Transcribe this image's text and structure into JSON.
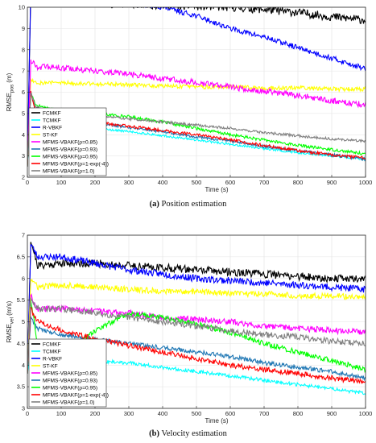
{
  "captions": [
    {
      "label": "(a)",
      "text": "Position estimation"
    },
    {
      "label": "(b)",
      "text": "Velocity estimation"
    }
  ],
  "chart_data": [
    {
      "type": "line",
      "title": "",
      "xlabel": "Time (s)",
      "ylabel_main": "RMSE",
      "ylabel_sub": "pos",
      "ylabel_unit": "(m)",
      "xlim": [
        0,
        1000
      ],
      "ylim": [
        2,
        10
      ],
      "xticks": [
        0,
        100,
        200,
        300,
        400,
        500,
        600,
        700,
        800,
        900,
        1000
      ],
      "xtick_labels": [
        "0",
        "100",
        "200",
        "300",
        "400",
        "500",
        "600",
        "700",
        "800",
        "900",
        "1000"
      ],
      "yticks": [
        2,
        3,
        4,
        5,
        6,
        7,
        8,
        9,
        10
      ],
      "ytick_labels": [
        "2",
        "3",
        "4",
        "5",
        "6",
        "7",
        "8",
        "9",
        "10"
      ],
      "grid": true,
      "legend_position": "bottom-left",
      "series": [
        {
          "name": "FCMKF",
          "color": "#000000",
          "noise": 0.2,
          "seed": 11,
          "x": [
            0,
            10,
            30,
            60,
            100,
            200,
            300,
            400,
            500,
            600,
            700,
            800,
            900,
            1000
          ],
          "y": [
            2.5,
            10.8,
            10.6,
            10.4,
            10.3,
            10.2,
            10.15,
            10.1,
            10.05,
            10.0,
            9.9,
            9.75,
            9.55,
            9.4
          ]
        },
        {
          "name": "TCMKF",
          "color": "#00ffff",
          "noise": 0.05,
          "seed": 12,
          "x": [
            0,
            10,
            20,
            40,
            100,
            200,
            300,
            400,
            500,
            600,
            700,
            800,
            900,
            1000
          ],
          "y": [
            2.5,
            5.2,
            4.7,
            4.55,
            4.45,
            4.3,
            4.15,
            3.95,
            3.75,
            3.55,
            3.35,
            3.15,
            3.0,
            2.85
          ]
        },
        {
          "name": "R-VBKF",
          "color": "#0000ff",
          "noise": 0.12,
          "seed": 13,
          "x": [
            0,
            10,
            30,
            100,
            200,
            300,
            400,
            500,
            600,
            700,
            800,
            900,
            1000
          ],
          "y": [
            2.5,
            11.0,
            10.6,
            10.5,
            10.35,
            10.2,
            10.0,
            9.6,
            9.0,
            8.6,
            8.1,
            7.6,
            7.1
          ]
        },
        {
          "name": "ST-KF",
          "color": "#ffff00",
          "noise": 0.1,
          "seed": 14,
          "x": [
            0,
            10,
            30,
            100,
            200,
            300,
            400,
            500,
            600,
            700,
            800,
            900,
            1000
          ],
          "y": [
            2.5,
            6.6,
            6.45,
            6.45,
            6.4,
            6.35,
            6.3,
            6.25,
            6.25,
            6.2,
            6.2,
            6.15,
            6.15
          ]
        },
        {
          "name": "MFMS-VBAKF(ρ=0.85)",
          "color": "#ff00ff",
          "noise": 0.14,
          "seed": 15,
          "x": [
            0,
            10,
            30,
            100,
            200,
            300,
            400,
            500,
            600,
            700,
            800,
            900,
            1000
          ],
          "y": [
            2.5,
            7.5,
            7.2,
            7.15,
            7.0,
            6.85,
            6.65,
            6.45,
            6.25,
            6.05,
            5.85,
            5.6,
            5.4
          ]
        },
        {
          "name": "MFMS-VBAKF(ρ=0.93)",
          "color": "#1f77b4",
          "noise": 0.07,
          "seed": 16,
          "x": [
            0,
            10,
            25,
            60,
            100,
            200,
            300,
            400,
            500,
            600,
            700,
            800,
            900,
            1000
          ],
          "y": [
            2.5,
            6.0,
            5.1,
            4.85,
            4.75,
            4.55,
            4.35,
            4.15,
            3.9,
            3.7,
            3.45,
            3.25,
            3.05,
            2.85
          ]
        },
        {
          "name": "MFMS-VBAKF(ρ=0.95)",
          "color": "#00ff00",
          "noise": 0.07,
          "seed": 17,
          "x": [
            0,
            10,
            25,
            60,
            100,
            200,
            300,
            400,
            500,
            600,
            700,
            800,
            900,
            1000
          ],
          "y": [
            2.5,
            6.0,
            5.4,
            5.25,
            5.15,
            5.0,
            4.85,
            4.6,
            4.3,
            4.0,
            3.75,
            3.5,
            3.3,
            3.1
          ]
        },
        {
          "name": "MFMS-VBAKF(ρ=1-exp(-4))",
          "color": "#ff0000",
          "noise": 0.07,
          "seed": 18,
          "x": [
            0,
            10,
            25,
            60,
            100,
            200,
            300,
            400,
            500,
            600,
            700,
            800,
            900,
            1000
          ],
          "y": [
            2.5,
            6.0,
            5.1,
            4.95,
            4.85,
            4.6,
            4.4,
            4.2,
            4.0,
            3.75,
            3.5,
            3.25,
            3.05,
            2.9
          ]
        },
        {
          "name": "MFMS-VBAKF(ρ=1.0)",
          "color": "#808080",
          "noise": 0.06,
          "seed": 19,
          "x": [
            0,
            10,
            25,
            60,
            100,
            200,
            300,
            400,
            500,
            600,
            700,
            800,
            900,
            1000
          ],
          "y": [
            2.5,
            6.0,
            5.3,
            5.15,
            5.05,
            4.9,
            4.75,
            4.6,
            4.45,
            4.3,
            4.1,
            3.95,
            3.8,
            3.7
          ]
        }
      ]
    },
    {
      "type": "line",
      "title": "",
      "xlabel": "Time (s)",
      "ylabel_main": "RMSE",
      "ylabel_sub": "vel",
      "ylabel_unit": "(m/s)",
      "xlim": [
        0,
        1000
      ],
      "ylim": [
        3,
        7
      ],
      "xticks": [
        0,
        100,
        200,
        300,
        400,
        500,
        600,
        700,
        800,
        900,
        1000
      ],
      "xtick_labels": [
        "0",
        "100",
        "200",
        "300",
        "400",
        "500",
        "600",
        "700",
        "800",
        "900",
        "1000"
      ],
      "yticks": [
        3,
        3.5,
        4,
        4.5,
        5,
        5.5,
        6,
        6.5,
        7
      ],
      "ytick_labels": [
        "3",
        "3.5",
        "4",
        "4.5",
        "5",
        "5.5",
        "6",
        "6.5",
        "7"
      ],
      "grid": true,
      "legend_position": "bottom-left",
      "series": [
        {
          "name": "FCMKF",
          "color": "#000000",
          "noise": 0.09,
          "seed": 21,
          "x": [
            0,
            10,
            30,
            100,
            200,
            300,
            400,
            500,
            600,
            700,
            800,
            900,
            1000
          ],
          "y": [
            3.8,
            6.9,
            6.3,
            6.35,
            6.35,
            6.3,
            6.25,
            6.2,
            6.15,
            6.1,
            6.05,
            6.0,
            6.0
          ]
        },
        {
          "name": "TCMKF",
          "color": "#00ffff",
          "noise": 0.04,
          "seed": 22,
          "x": [
            0,
            10,
            30,
            100,
            200,
            300,
            400,
            500,
            600,
            700,
            800,
            900,
            1000
          ],
          "y": [
            3.8,
            4.3,
            4.2,
            4.15,
            4.1,
            4.05,
            3.95,
            3.85,
            3.75,
            3.65,
            3.55,
            3.45,
            3.35
          ]
        },
        {
          "name": "R-VBKF",
          "color": "#0000ff",
          "noise": 0.08,
          "seed": 23,
          "x": [
            0,
            10,
            30,
            100,
            200,
            300,
            400,
            500,
            600,
            700,
            800,
            900,
            1000
          ],
          "y": [
            3.8,
            6.8,
            6.5,
            6.5,
            6.35,
            6.2,
            6.1,
            6.0,
            5.95,
            5.9,
            5.85,
            5.8,
            5.75
          ]
        },
        {
          "name": "ST-KF",
          "color": "#ffff00",
          "noise": 0.07,
          "seed": 24,
          "x": [
            0,
            10,
            30,
            100,
            200,
            300,
            400,
            500,
            600,
            700,
            800,
            900,
            1000
          ],
          "y": [
            3.8,
            6.0,
            5.8,
            5.85,
            5.8,
            5.75,
            5.7,
            5.7,
            5.65,
            5.65,
            5.6,
            5.6,
            5.55
          ]
        },
        {
          "name": "MFMS-VBAKF(ρ=0.85)",
          "color": "#ff00ff",
          "noise": 0.07,
          "seed": 25,
          "x": [
            0,
            10,
            30,
            100,
            200,
            300,
            400,
            500,
            600,
            700,
            800,
            900,
            1000
          ],
          "y": [
            3.8,
            5.6,
            5.3,
            5.3,
            5.25,
            5.2,
            5.1,
            5.05,
            5.0,
            4.9,
            4.85,
            4.8,
            4.75
          ]
        },
        {
          "name": "MFMS-VBAKF(ρ=0.93)",
          "color": "#1f77b4",
          "noise": 0.05,
          "seed": 26,
          "x": [
            0,
            10,
            30,
            100,
            200,
            300,
            400,
            500,
            600,
            700,
            800,
            900,
            1000
          ],
          "y": [
            3.8,
            5.1,
            4.85,
            4.7,
            4.6,
            4.5,
            4.4,
            4.3,
            4.2,
            4.05,
            3.95,
            3.85,
            3.7
          ]
        },
        {
          "name": "MFMS-VBAKF(ρ=0.95)",
          "color": "#00ff00",
          "noise": 0.06,
          "seed": 27,
          "x": [
            0,
            10,
            30,
            60,
            100,
            150,
            200,
            300,
            400,
            500,
            600,
            700,
            800,
            900,
            1000
          ],
          "y": [
            3.8,
            5.5,
            4.5,
            4.2,
            4.15,
            4.5,
            4.8,
            5.2,
            5.1,
            4.95,
            4.75,
            4.5,
            4.3,
            4.1,
            3.9
          ]
        },
        {
          "name": "MFMS-VBAKF(ρ=1-exp(-4))",
          "color": "#ff0000",
          "noise": 0.06,
          "seed": 28,
          "x": [
            0,
            10,
            30,
            100,
            200,
            300,
            400,
            500,
            600,
            700,
            800,
            900,
            1000
          ],
          "y": [
            3.8,
            5.3,
            5.0,
            4.8,
            4.6,
            4.45,
            4.3,
            4.15,
            4.0,
            3.9,
            3.8,
            3.7,
            3.6
          ]
        },
        {
          "name": "MFMS-VBAKF(ρ=1.0)",
          "color": "#808080",
          "noise": 0.07,
          "seed": 29,
          "x": [
            0,
            10,
            30,
            100,
            200,
            300,
            400,
            500,
            600,
            700,
            800,
            900,
            1000
          ],
          "y": [
            3.8,
            5.5,
            5.3,
            5.3,
            5.2,
            5.1,
            5.0,
            4.9,
            4.8,
            4.7,
            4.65,
            4.55,
            4.5
          ]
        }
      ]
    }
  ]
}
